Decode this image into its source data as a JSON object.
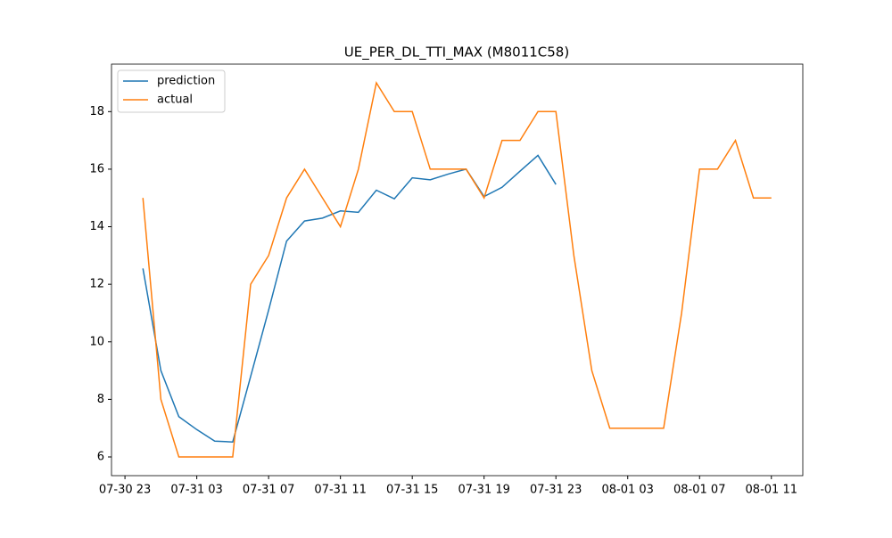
{
  "chart_data": {
    "type": "line",
    "title": "UE_PER_DL_TTI_MAX (M8011C58)",
    "x": [
      "07-31 00",
      "07-31 01",
      "07-31 02",
      "07-31 03",
      "07-31 04",
      "07-31 05",
      "07-31 06",
      "07-31 07",
      "07-31 08",
      "07-31 09",
      "07-31 10",
      "07-31 11",
      "07-31 12",
      "07-31 13",
      "07-31 14",
      "07-31 15",
      "07-31 16",
      "07-31 17",
      "07-31 18",
      "07-31 19",
      "07-31 20",
      "07-31 21",
      "07-31 22",
      "07-31 23",
      "08-01 00",
      "08-01 01",
      "08-01 02",
      "08-01 03",
      "08-01 04",
      "08-01 05",
      "08-01 06",
      "08-01 07",
      "08-01 08",
      "08-01 09",
      "08-01 10",
      "08-01 11"
    ],
    "series": [
      {
        "name": "prediction",
        "color": "#1f77b4",
        "values": [
          12.55,
          9.0,
          7.4,
          6.95,
          6.55,
          6.52,
          8.8,
          11.1,
          13.5,
          14.2,
          14.3,
          14.55,
          14.5,
          15.27,
          14.97,
          15.7,
          15.63,
          15.83,
          16.0,
          15.05,
          15.37,
          15.93,
          16.48,
          15.47,
          null,
          null,
          null,
          null,
          null,
          null,
          null,
          null,
          null,
          null,
          null,
          null
        ]
      },
      {
        "name": "actual",
        "color": "#ff7f0e",
        "values": [
          15,
          8,
          6,
          6,
          6,
          6,
          12,
          13,
          15,
          16,
          15,
          14,
          16,
          19,
          18,
          18,
          16,
          16,
          16,
          15,
          17,
          17,
          18,
          18,
          13,
          9,
          7,
          7,
          7,
          7,
          11,
          16,
          16,
          17,
          15,
          15
        ]
      }
    ],
    "xlim": [
      "07-30 22:15",
      "08-01 12:45"
    ],
    "xticks": [
      "07-30 23",
      "07-31 03",
      "07-31 07",
      "07-31 11",
      "07-31 15",
      "07-31 19",
      "07-31 23",
      "08-01 03",
      "08-01 07",
      "08-01 11"
    ],
    "ylim": [
      5.35,
      19.65
    ],
    "yticks": [
      6,
      8,
      10,
      12,
      14,
      16,
      18
    ],
    "legend": "upper left"
  }
}
